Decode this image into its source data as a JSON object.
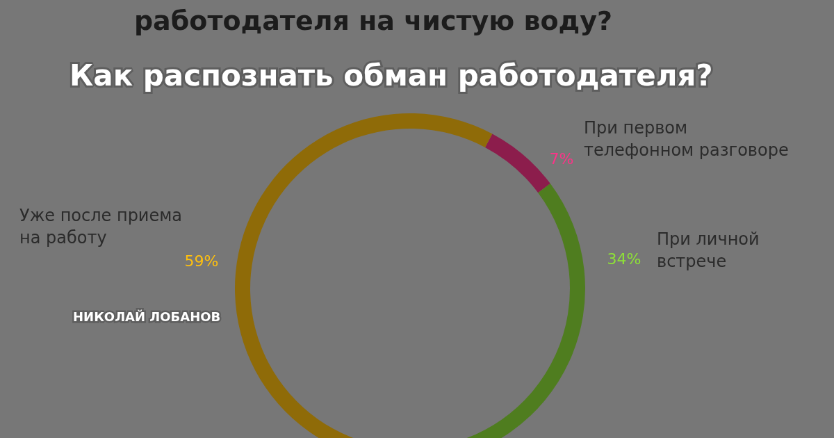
{
  "chart_data": {
    "type": "donut",
    "title": "Как распознать обман работодателя?",
    "subtitle": "работодателя на чистую воду?",
    "categories": [
      "При первом телефонном разговоре",
      "При личной встрече",
      "Уже после приема на работу"
    ],
    "values": [
      7,
      34,
      59
    ],
    "colors": [
      "#8c1d4c",
      "#4f7d1f",
      "#8f6b08"
    ],
    "value_labels": [
      "7%",
      "34%",
      "59%"
    ],
    "annotations": [
      "НИКОЛАЙ ЛОБАНОВ"
    ],
    "legend": false
  }
}
